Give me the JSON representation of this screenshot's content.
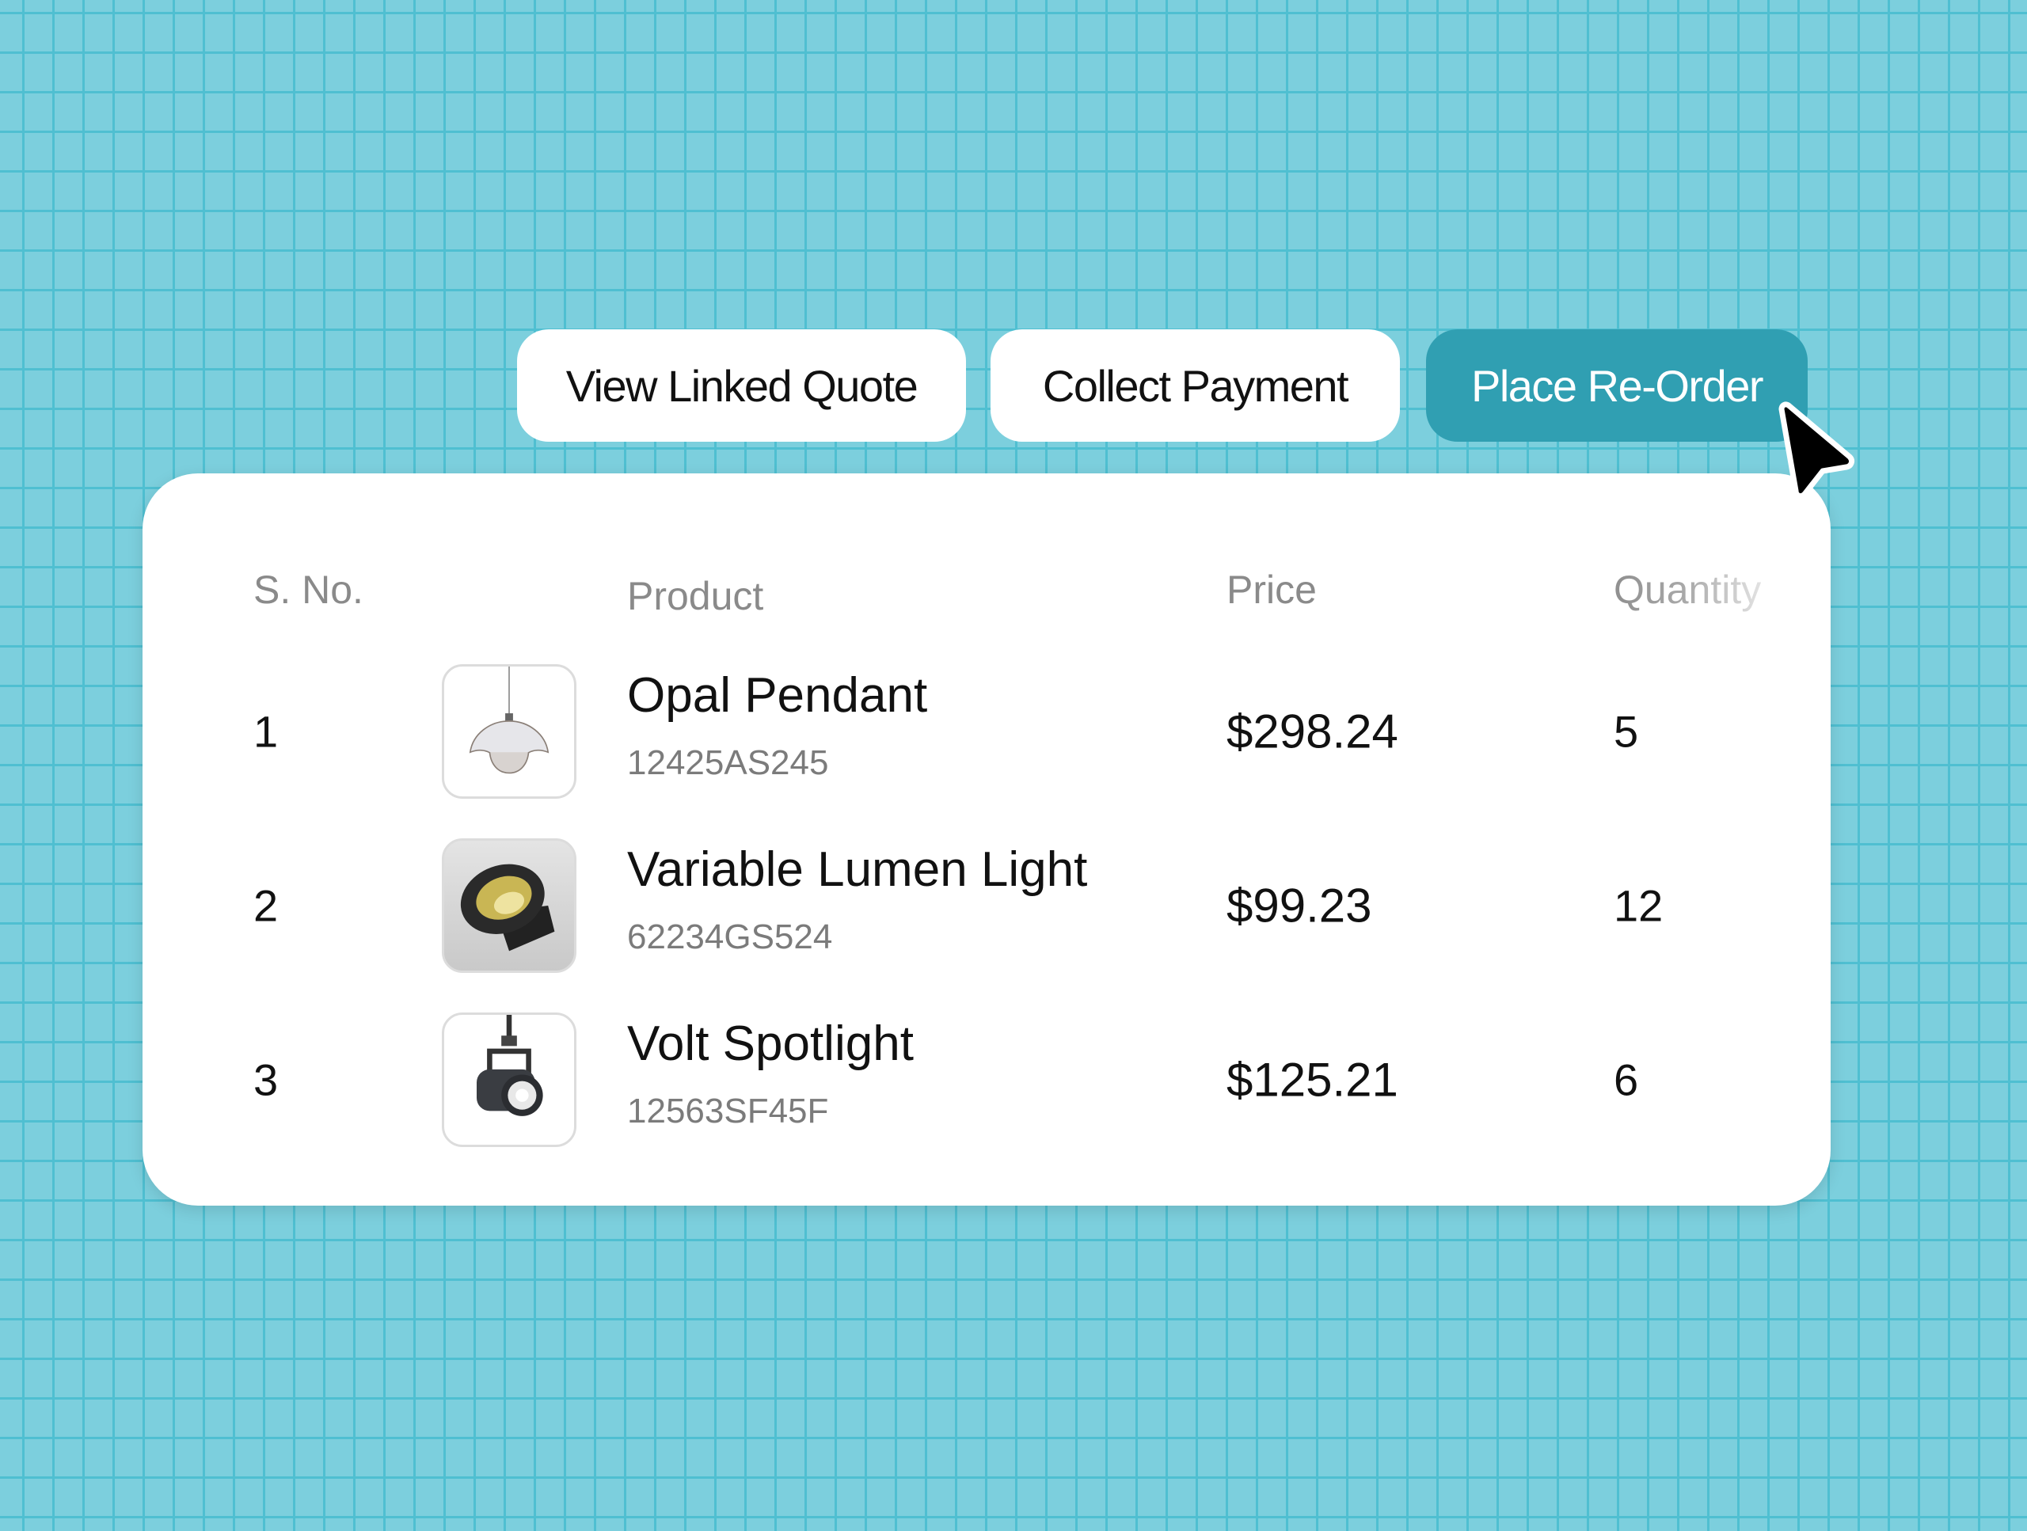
{
  "actions": {
    "view_linked_quote": "View Linked Quote",
    "collect_payment": "Collect Payment",
    "place_reorder": "Place Re-Order"
  },
  "colors": {
    "background": "#7ccfdd",
    "grid_line": "#4fbfd1",
    "primary_button": "#309fb2"
  },
  "table": {
    "headers": {
      "sno": "S. No.",
      "product": "Product",
      "price": "Price",
      "quantity": "Quantity"
    },
    "rows": [
      {
        "sno": "1",
        "name": "Opal Pendant",
        "code": "12425AS245",
        "price": "$298.24",
        "quantity": "5",
        "icon": "pendant-lamp-image"
      },
      {
        "sno": "2",
        "name": "Variable Lumen Light",
        "code": "62234GS524",
        "price": "$99.23",
        "quantity": "12",
        "icon": "recessed-light-image"
      },
      {
        "sno": "3",
        "name": "Volt Spotlight",
        "code": "12563SF45F",
        "price": "$125.21",
        "quantity": "6",
        "icon": "spotlight-image"
      }
    ]
  }
}
